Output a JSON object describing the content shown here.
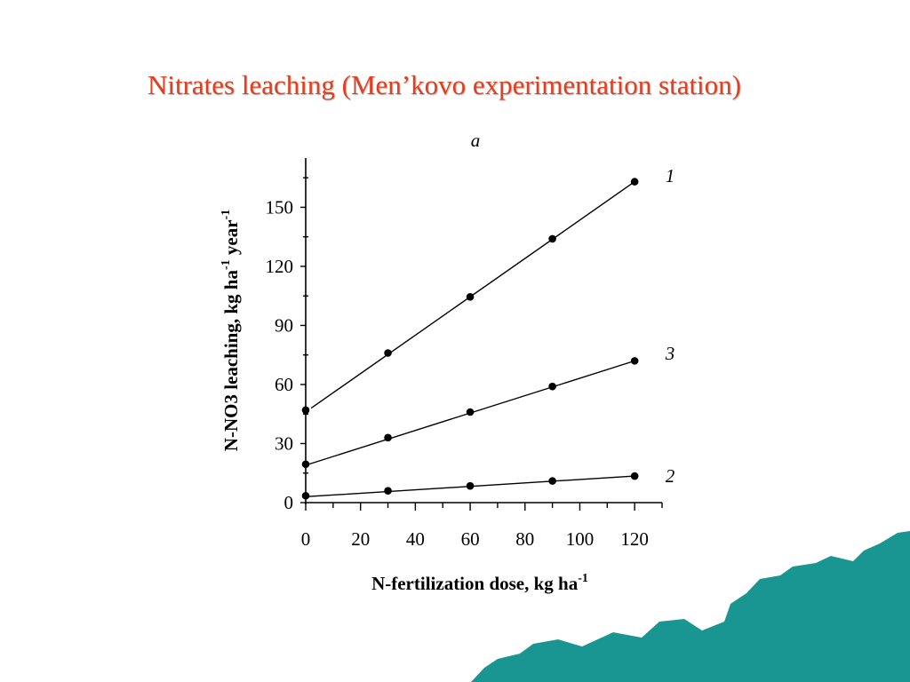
{
  "slide": {
    "title": "Nitrates leaching (Men’kovo experimentation station)"
  },
  "chart_data": {
    "type": "scatter",
    "panel_label": "a",
    "xlabel": "N-fertilization dose, kg ha",
    "xlabel_sup": "-1",
    "ylabel_parts": [
      {
        "text": "N-NO3 leaching, kg ha",
        "sup": false
      },
      {
        "text": "-1",
        "sup": true
      },
      {
        "text": " year",
        "sup": false
      },
      {
        "text": "-1",
        "sup": true
      }
    ],
    "xlim": [
      0,
      130
    ],
    "ylim": [
      0,
      175
    ],
    "xticks": [
      0,
      20,
      40,
      60,
      80,
      100,
      120
    ],
    "yticks": [
      0,
      30,
      60,
      90,
      120,
      150
    ],
    "x_minor_step": 10,
    "y_minor_step": 15,
    "grid": false,
    "series": [
      {
        "name": "1",
        "x": [
          0,
          30,
          60,
          90,
          120
        ],
        "y": [
          47,
          76,
          104.5,
          134,
          163
        ],
        "fit": {
          "x0": 2,
          "y0": 48,
          "x1": 120,
          "y1": 163
        }
      },
      {
        "name": "3",
        "x": [
          0,
          30,
          60,
          90,
          120
        ],
        "y": [
          19.5,
          33,
          46,
          59,
          72
        ],
        "fit": {
          "x0": 0,
          "y0": 19,
          "x1": 120,
          "y1": 72
        }
      },
      {
        "name": "2",
        "x": [
          0,
          30,
          60,
          90,
          120
        ],
        "y": [
          3.5,
          6,
          8.5,
          11,
          13.5
        ],
        "fit": {
          "x0": 0,
          "y0": 3,
          "x1": 120,
          "y1": 13.5
        }
      }
    ],
    "colors": {
      "series": "#000000",
      "axes": "#000000"
    }
  },
  "colors": {
    "title": "#e0401f",
    "decor": "#1a9692"
  }
}
